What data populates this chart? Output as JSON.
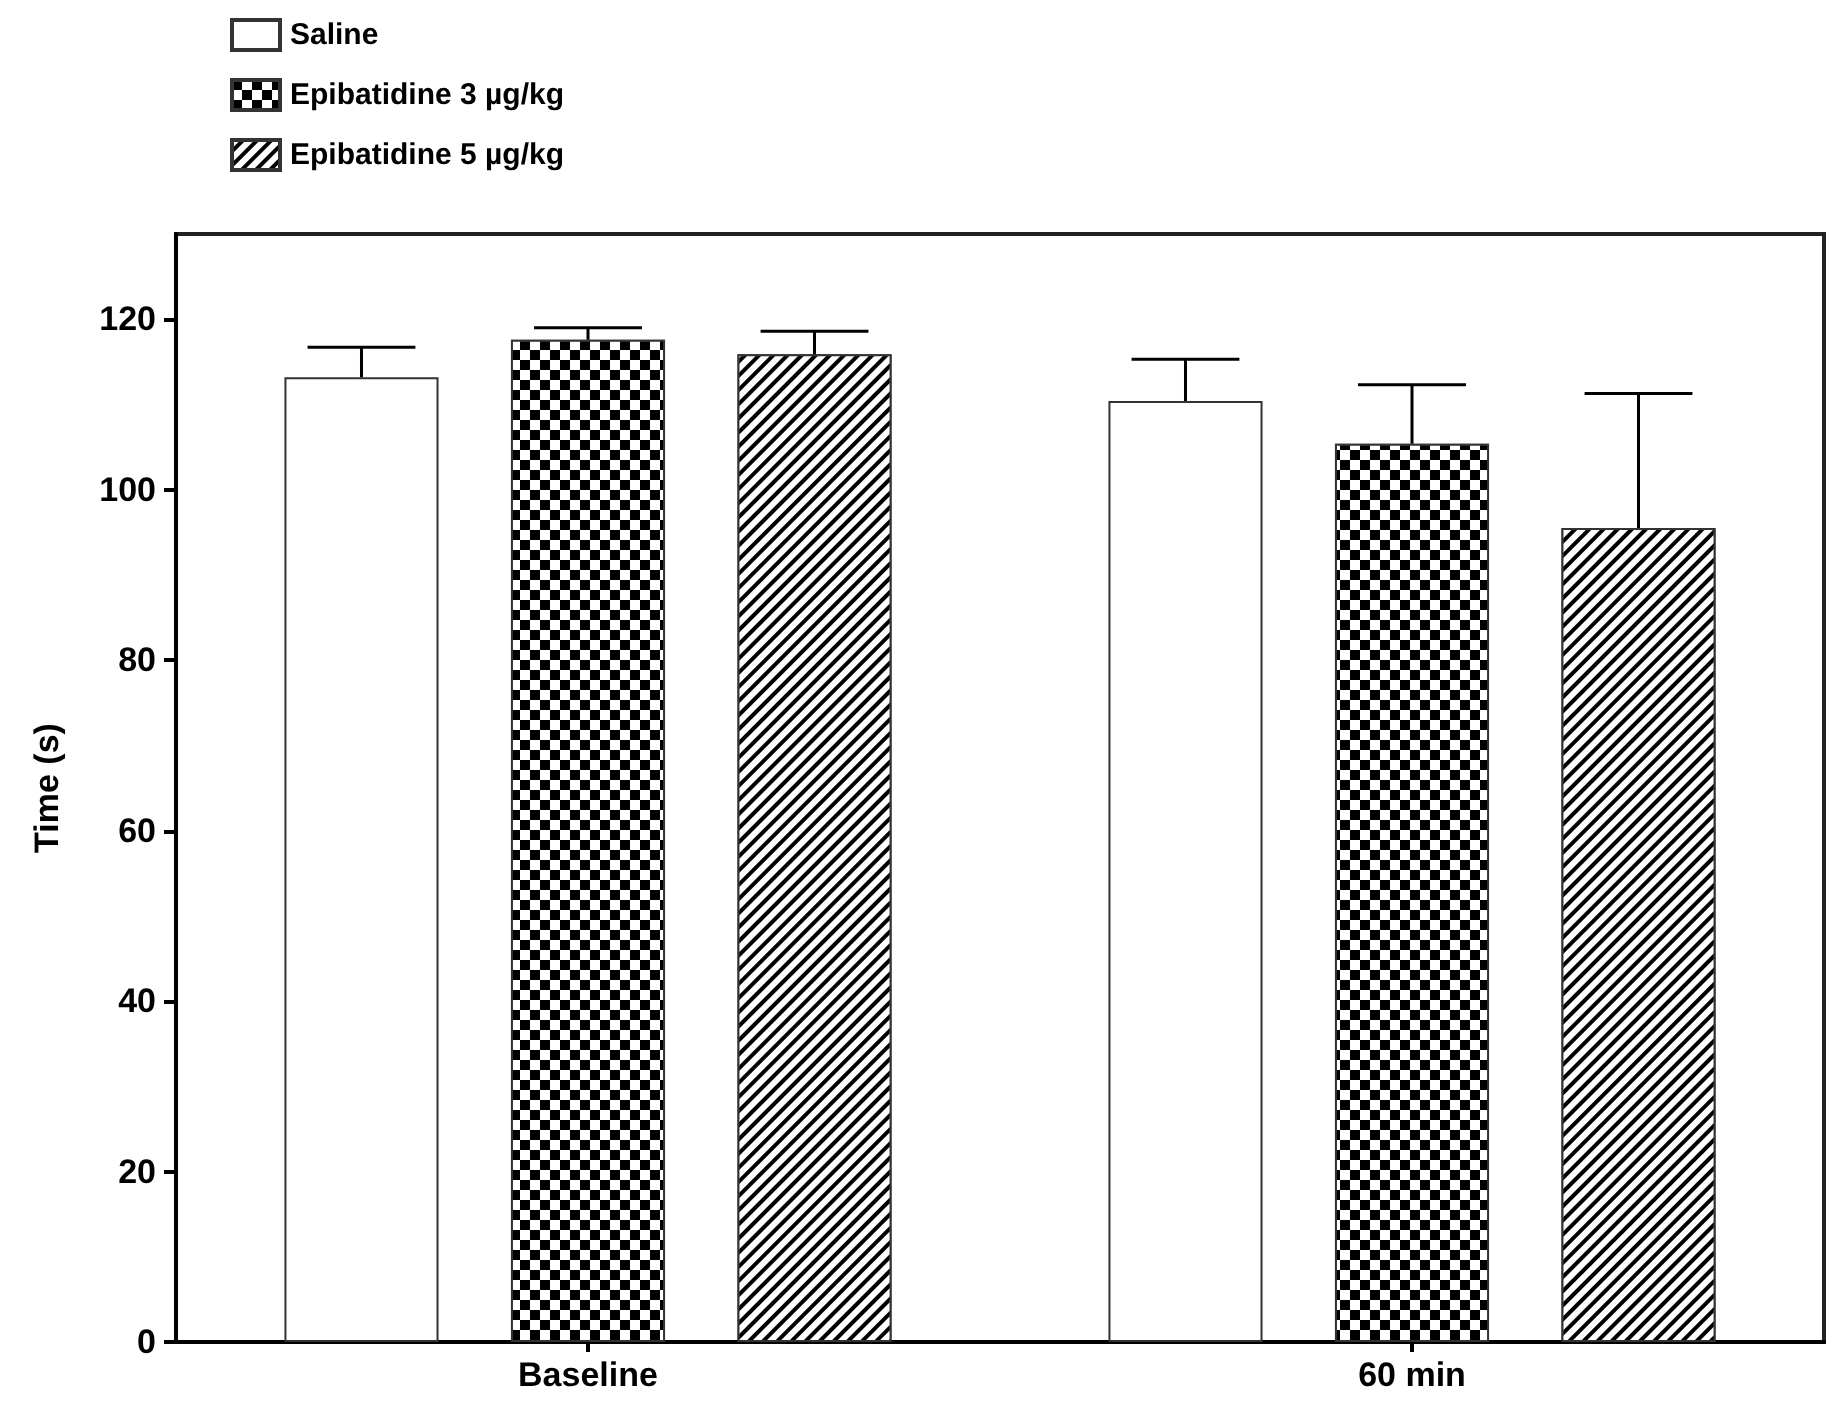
{
  "chart_data": {
    "type": "bar",
    "ylabel": "Time (s)",
    "categories": [
      "Baseline",
      "60 min"
    ],
    "series": [
      {
        "name": "Saline",
        "color": "#ffffff",
        "values": [
          113.2,
          110.4
        ],
        "errors": [
          [
            113.2,
            116.7
          ],
          [
            110.4,
            115.3
          ]
        ]
      },
      {
        "name": "Epibatidine 3 µg/kg",
        "color": "#000000",
        "values": [
          117.6,
          105.4
        ],
        "errors": [
          [
            117.6,
            119.0
          ],
          [
            105.4,
            112.3
          ]
        ]
      },
      {
        "name": "Epibatidine 5 µg/kg",
        "color": "#000000",
        "values": [
          115.9,
          95.5
        ],
        "errors": [
          [
            115.9,
            118.6
          ],
          [
            95.5,
            111.3
          ]
        ]
      }
    ],
    "ylim": [
      0,
      130
    ],
    "yticks": [
      0,
      20,
      40,
      60,
      80,
      100,
      120
    ],
    "grid": false,
    "legend": "top left"
  }
}
